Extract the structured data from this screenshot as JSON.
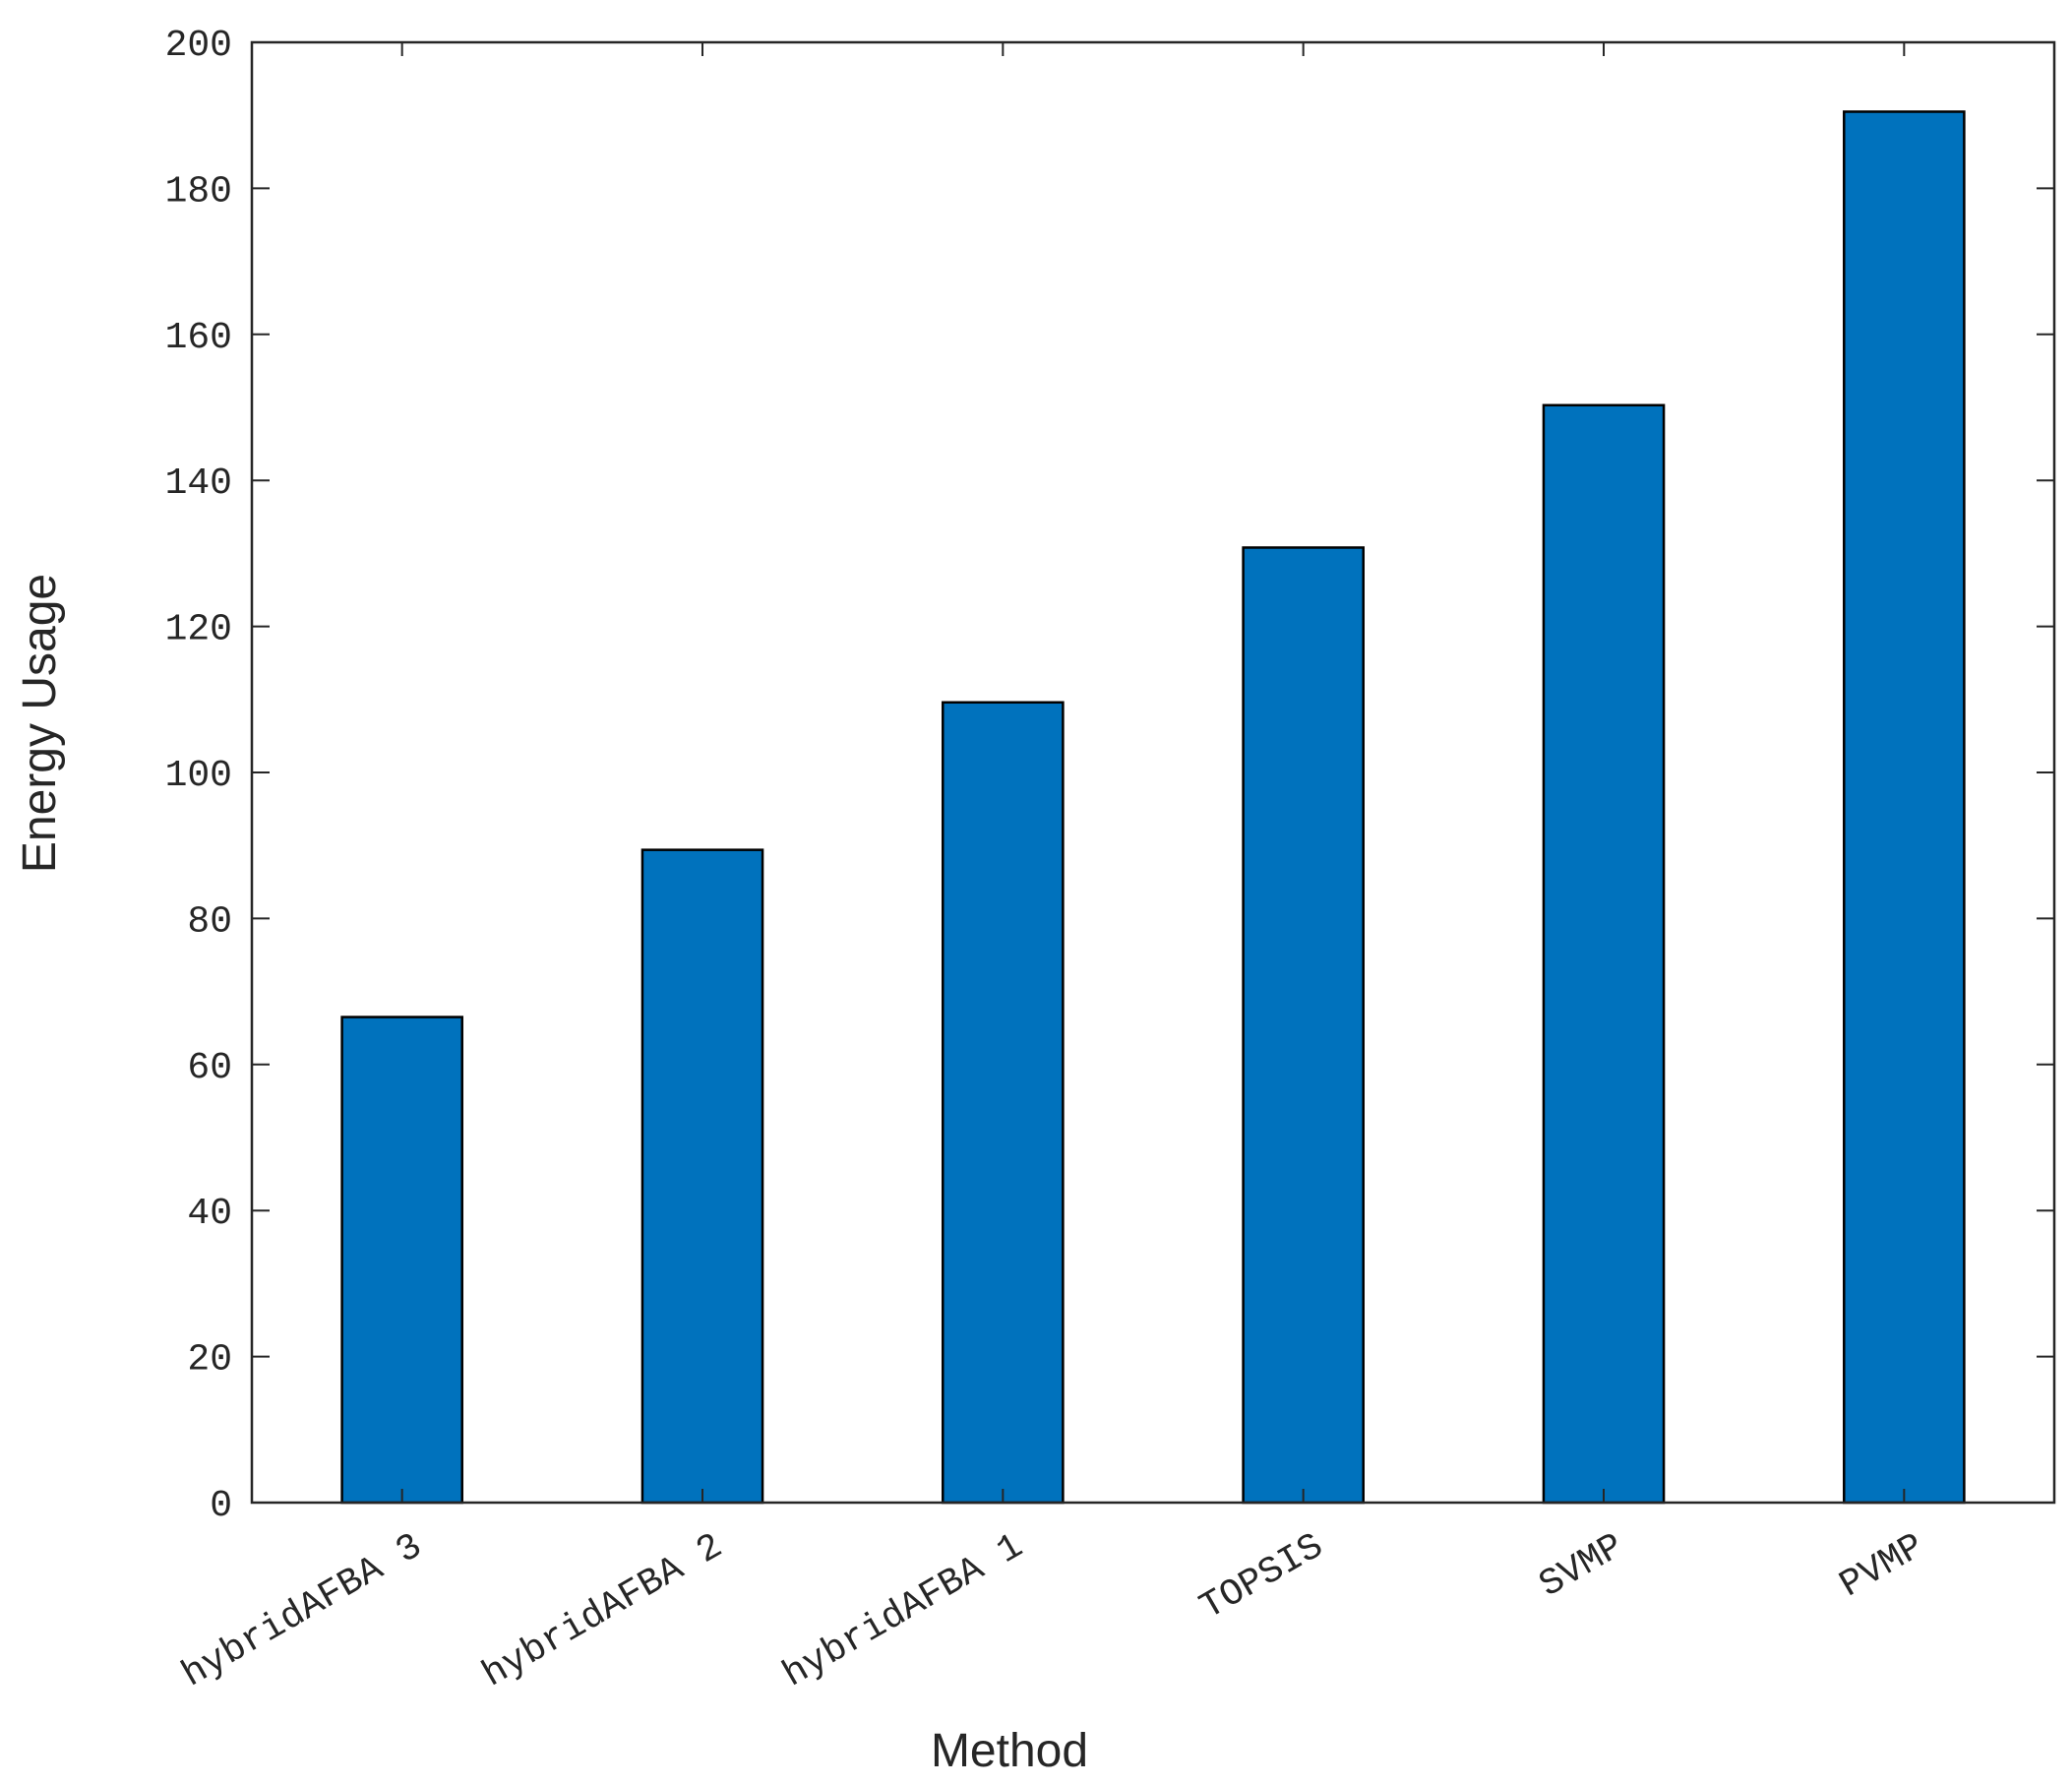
{
  "chart_data": {
    "type": "bar",
    "x_label": "Method",
    "y_label": "Energy Usage",
    "categories": [
      "hybridAFBA 3",
      "hybridAFBA 2",
      "hybridAFBA 1",
      "TOPSIS",
      "SVMP",
      "PVMP"
    ],
    "values": [
      66.5,
      89.4,
      109.6,
      130.8,
      150.3,
      190.5
    ],
    "color": "#0072bd",
    "ylim": [
      0,
      200
    ],
    "yticks": [
      0,
      20,
      40,
      60,
      80,
      100,
      120,
      140,
      160,
      180,
      200
    ],
    "grid": false,
    "box": true
  }
}
